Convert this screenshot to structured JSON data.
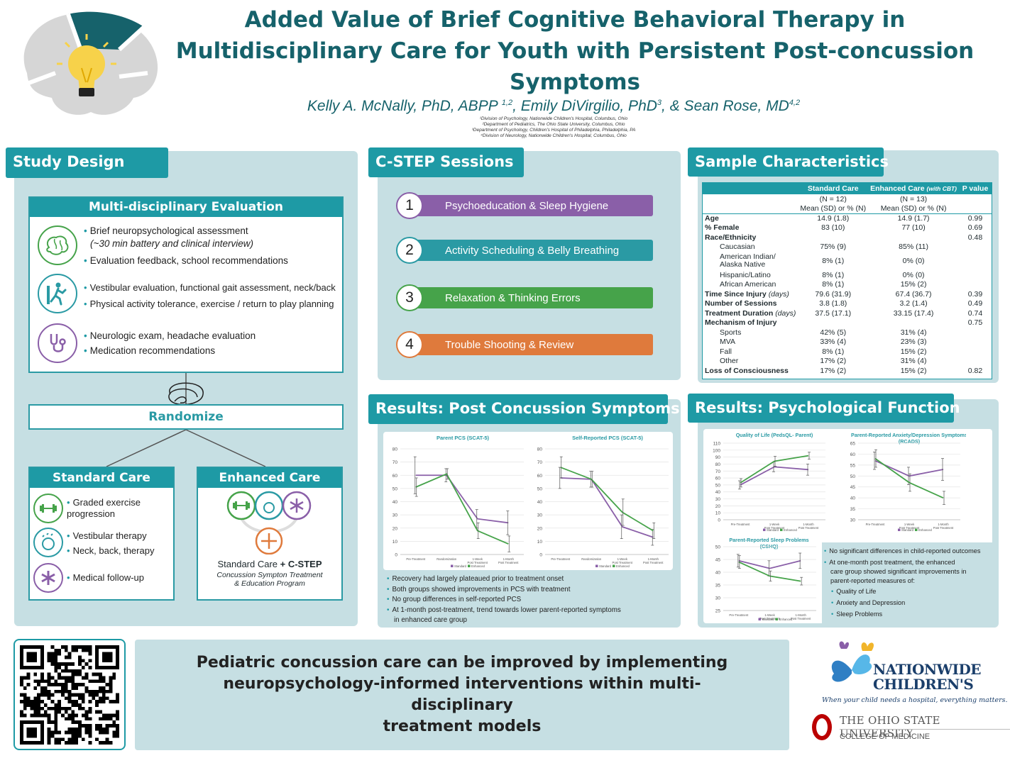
{
  "header": {
    "title_line1": "Added Value of Brief Cognitive Behavioral Therapy in",
    "title_line2": "Multidisciplinary Care for Youth with Persistent Post-concussion",
    "title_line3": "Symptoms",
    "author1": "Kelly A. McNally, PhD, ABPP",
    "author1_sup": "1,2",
    "author2": "Emily DiVirgilio, PhD",
    "author2_sup": "3",
    "author3": "& Sean Rose, MD",
    "author3_sup": "4,2",
    "affil1": "¹Division of Psychology, Nationwide Children's Hospital, Columbus, Ohio",
    "affil2": "²Department of Pediatrics, The Ohio State University, Columbus, Ohio",
    "affil3": "³Department of Psychology, Children's Hospital of Philadelphia, Philadelphia, PA",
    "affil4": "⁴Division of Neurology, Nationwide Children's Hospital, Columbus, Ohio"
  },
  "study_design": {
    "title": "Study Design",
    "eval_title": "Multi-disciplinary Evaluation",
    "b1": "Brief neuropsychological assessment",
    "b1_sub": "(~30 min battery and clinical interview)",
    "b2": "Evaluation feedback, school recommendations",
    "b3": "Vestibular evaluation, functional gait assessment, neck/back",
    "b4": "Physical activity tolerance, exercise / return to play planning",
    "b5": "Neurologic exam, headache evaluation",
    "b6": "Medication recommendations",
    "randomize": "Randomize",
    "std_title": "Standard Care",
    "std1": "Graded exercise progression",
    "std2": "Vestibular therapy",
    "std3": "Neck, back, therapy",
    "std4": "Medical follow-up",
    "enh_title": "Enhanced Care",
    "enh_line1a": "Standard Care ",
    "enh_line1b": "+ C-STEP",
    "enh_line2": "Concussion Sympton Treatment",
    "enh_line3": "& Education Program"
  },
  "sessions": {
    "title": "C-STEP Sessions",
    "items": [
      {
        "num": "1",
        "label": "Psychoeducation & Sleep Hygiene",
        "color": "#8a5fa8"
      },
      {
        "num": "2",
        "label": "Activity Scheduling & Belly Breathing",
        "color": "#2a9aa4"
      },
      {
        "num": "3",
        "label": "Relaxation & Thinking Errors",
        "color": "#46a34a"
      },
      {
        "num": "4",
        "label": "Trouble Shooting & Review",
        "color": "#df7a3c"
      }
    ]
  },
  "sample": {
    "title": "Sample Characteristics",
    "headers": [
      "",
      "Standard Care",
      "Enhanced Care",
      "(with CBT)",
      "P value"
    ],
    "n_std": "(N = 12)",
    "n_enh": "(N = 13)",
    "stat_std": "Mean (SD) or % (N)",
    "stat_enh": "Mean (SD) or % (N)",
    "rows": [
      {
        "label": "Age",
        "std": "14.9 (1.8)",
        "enh": "14.9 (1.7)",
        "p": "0.99",
        "bold": true
      },
      {
        "label": "% Female",
        "std": "83 (10)",
        "enh": "77 (10)",
        "p": "0.69",
        "bold": true
      },
      {
        "label": "Race/Ethnicity",
        "std": "",
        "enh": "",
        "p": "0.48",
        "bold": true
      },
      {
        "label": "Caucasian",
        "std": "75% (9)",
        "enh": "85% (11)",
        "p": "",
        "indent": true
      },
      {
        "label": "American Indian/",
        "std": "8% (1)",
        "enh": "0% (0)",
        "p": "",
        "indent": true,
        "label2": "Alaska Native"
      },
      {
        "label": "Hispanic/Latino",
        "std": "8% (1)",
        "enh": "0% (0)",
        "p": "",
        "indent": true
      },
      {
        "label": "African American",
        "std": "8% (1)",
        "enh": "15% (2)",
        "p": "",
        "indent": true
      },
      {
        "label": "Time Since Injury",
        "label_it": "(days)",
        "std": "79.6 (31.9)",
        "enh": "67.4 (36.7)",
        "p": "0.39",
        "bold": true
      },
      {
        "label": "Number of Sessions",
        "std": "3.8 (1.8)",
        "enh": "3.2 (1.4)",
        "p": "0.49",
        "bold": true
      },
      {
        "label": "Treatment Duration",
        "label_it": "(days)",
        "std": "37.5 (17.1)",
        "enh": "33.15 (17.4)",
        "p": "0.74",
        "bold": true
      },
      {
        "label": "Mechanism of Injury",
        "std": "",
        "enh": "",
        "p": "0.75",
        "bold": true
      },
      {
        "label": "Sports",
        "std": "42% (5)",
        "enh": "31% (4)",
        "p": "",
        "indent": true
      },
      {
        "label": "MVA",
        "std": "33% (4)",
        "enh": "23% (3)",
        "p": "",
        "indent": true
      },
      {
        "label": "Fall",
        "std": "8% (1)",
        "enh": "15% (2)",
        "p": "",
        "indent": true
      },
      {
        "label": "Other",
        "std": "17% (2)",
        "enh": "31% (4)",
        "p": "",
        "indent": true
      },
      {
        "label": "Loss of Consciousness",
        "std": "17% (2)",
        "enh": "15% (2)",
        "p": "0.82",
        "bold": true
      }
    ]
  },
  "pcs": {
    "title": "Results: Post Concussion Symptoms",
    "bullets": [
      "Recovery had largely plateaued prior to treatment onset",
      "Both groups showed improvements in PCS with treatment",
      "No group differences in self-reported PCS",
      "At 1-month post-treatment, trend towards lower parent-reported symptoms",
      "in enhanced care group"
    ]
  },
  "psych": {
    "title": "Results: Psychological Function",
    "b1": "No significant differences in child-reported outcomes",
    "b2a": "At one-month post treatment, the enhanced",
    "b2b": "care group showed significant improvements in",
    "b2c": "parent-reported measures of:",
    "s1": "Quality of Life",
    "s2": "Anxiety and Depression",
    "s3": "Sleep Problems"
  },
  "conclusion": {
    "line1": "Pediatric concussion care can be improved by implementing",
    "line2": "neuropsychology-informed interventions within multi-disciplinary",
    "line3": "treatment models"
  },
  "logos": {
    "nch1": "NATIONWIDE",
    "nch2": "CHILDREN'S",
    "nch_tag": "When your child needs a hospital, everything matters.",
    "osu1": "THE OHIO STATE UNIVERSITY",
    "osu2": "COLLEGE OF MEDICINE"
  },
  "colors": {
    "standard": "#8a5fa8",
    "enhanced": "#46a34a",
    "accent": "#1e9aa5"
  },
  "chart_data": [
    {
      "type": "line",
      "title": "Parent PCS (SCAT-5)",
      "categories": [
        "Pre-Treatment",
        "Randomization",
        "1-Week Post Treatment",
        "1-Month Post Treatment"
      ],
      "ylim": [
        0,
        80
      ],
      "yticks": [
        0,
        10,
        20,
        30,
        40,
        50,
        60,
        70,
        80
      ],
      "series": [
        {
          "name": "Standard",
          "values": [
            60,
            60,
            27,
            24
          ],
          "err": [
            14,
            5,
            7,
            9
          ]
        },
        {
          "name": "Enhanced",
          "values": [
            51,
            61,
            18,
            8
          ],
          "err": [
            7,
            4,
            6,
            6
          ]
        }
      ]
    },
    {
      "type": "line",
      "title": "Self-Reported PCS (SCAT-5)",
      "categories": [
        "Pre-Treatment",
        "Randomization",
        "1-Week Post Treatment",
        "1-Month Post Treatment"
      ],
      "ylim": [
        0,
        80
      ],
      "yticks": [
        0,
        10,
        20,
        30,
        40,
        50,
        60,
        70,
        80
      ],
      "series": [
        {
          "name": "Standard",
          "values": [
            58,
            57,
            21,
            13
          ],
          "err": [
            8,
            6,
            9,
            6
          ]
        },
        {
          "name": "Enhanced",
          "values": [
            66,
            57,
            32,
            18
          ],
          "err": [
            8,
            6,
            10,
            6
          ]
        }
      ]
    },
    {
      "type": "line",
      "title": "Quality of Life (PedsQL- Parent)",
      "categories": [
        "Pre-Treatment",
        "1-Week Post Treatment",
        "1-Month Post Treatment"
      ],
      "ylim": [
        0,
        110
      ],
      "yticks": [
        0,
        10,
        20,
        30,
        40,
        50,
        60,
        70,
        80,
        90,
        100,
        110
      ],
      "series": [
        {
          "name": "Standard",
          "values": [
            50,
            76,
            72
          ],
          "err": [
            6,
            7,
            8
          ]
        },
        {
          "name": "Enhanced",
          "values": [
            53,
            84,
            92
          ],
          "err": [
            6,
            7,
            5
          ]
        }
      ]
    },
    {
      "type": "line",
      "title": "Parent-Reported Anxiety/Depression Symptoms (RCADS)",
      "categories": [
        "Pre-Treatment",
        "1-Week Post Treatment",
        "1-Month Post Treatment"
      ],
      "ylim": [
        30,
        65
      ],
      "yticks": [
        30,
        35,
        40,
        45,
        50,
        55,
        60,
        65
      ],
      "series": [
        {
          "name": "Standard",
          "values": [
            57,
            50,
            53
          ],
          "err": [
            4,
            4,
            5
          ]
        },
        {
          "name": "Enhanced",
          "values": [
            58,
            47,
            40
          ],
          "err": [
            4,
            4,
            3
          ]
        }
      ]
    },
    {
      "type": "line",
      "title": "Parent-Reported Sleep Problems (CSHQ)",
      "categories": [
        "Pre-Treatment",
        "1-Week Post Treatment",
        "1-Month Post Treatment"
      ],
      "ylim": [
        25,
        50
      ],
      "yticks": [
        25,
        30,
        35,
        40,
        45,
        50
      ],
      "series": [
        {
          "name": "Standard",
          "values": [
            44.5,
            41.5,
            44.5
          ],
          "err": [
            2.5,
            3,
            3
          ]
        },
        {
          "name": "Enhanced",
          "values": [
            44,
            38.5,
            36.5
          ],
          "err": [
            2.5,
            2,
            1.5
          ]
        }
      ]
    }
  ]
}
